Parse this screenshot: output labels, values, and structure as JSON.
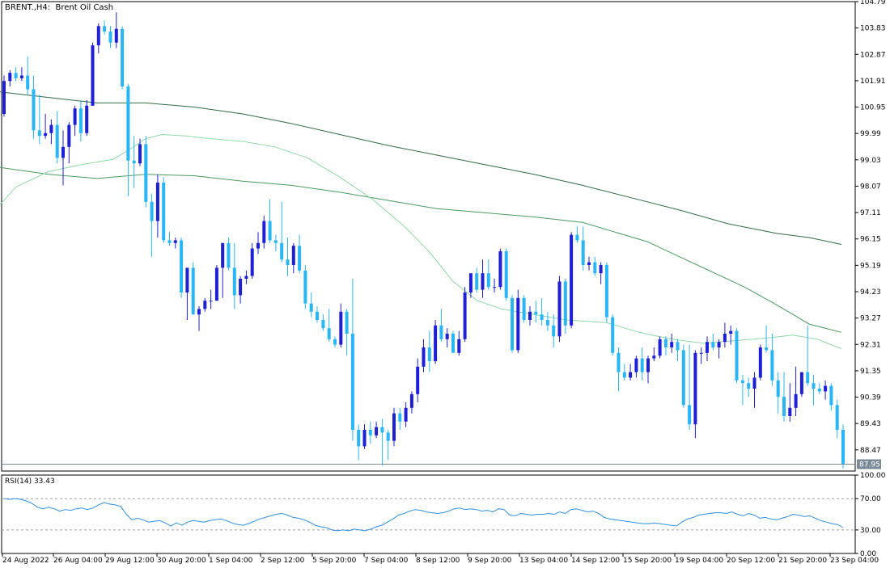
{
  "title": "BRENT.,H4:  Brent Oil Cash",
  "rsi_title": "RSI(14) 33.43",
  "colors": {
    "bull": "#1f1fd6",
    "bear": "#29b6f6",
    "ma_fast": "#8fd9a8",
    "ma_mid": "#4a9a5e",
    "ma_slow": "#2f6b45",
    "rsi": "#2f8fe0",
    "grid": "#000000",
    "price_line": "#7a8a99",
    "price_tag_bg": "#7a8a99"
  },
  "chart_data": [
    {
      "type": "candlestick",
      "title": "BRENT.,H4:  Brent Oil Cash",
      "ylim": [
        87.7,
        104.79
      ],
      "y_ticks": [
        "104.79",
        "103.83",
        "102.87",
        "101.91",
        "100.95",
        "99.99",
        "99.03",
        "98.07",
        "97.11",
        "96.15",
        "95.19",
        "94.23",
        "93.27",
        "92.31",
        "91.35",
        "90.39",
        "89.43",
        "88.47"
      ],
      "x_ticks": [
        "24 Aug 2022",
        "26 Aug 04:00",
        "29 Aug 12:00",
        "30 Aug 20:00",
        "1 Sep 04:00",
        "2 Sep 12:00",
        "5 Sep 20:00",
        "7 Sep 04:00",
        "8 Sep 12:00",
        "9 Sep 20:00",
        "13 Sep 04:00",
        "14 Sep 12:00",
        "15 Sep 20:00",
        "19 Sep 04:00",
        "20 Sep 12:00",
        "21 Sep 20:00",
        "23 Sep 04:00"
      ],
      "current_price": "87.95",
      "ohlc": [
        [
          100.7,
          102.1,
          100.6,
          101.9
        ],
        [
          101.9,
          102.3,
          101.7,
          102.2
        ],
        [
          102.2,
          102.4,
          101.9,
          102.0
        ],
        [
          102.0,
          102.4,
          101.9,
          102.1
        ],
        [
          102.1,
          102.8,
          101.4,
          101.6
        ],
        [
          101.6,
          102.1,
          99.8,
          100.1
        ],
        [
          100.1,
          101.4,
          99.6,
          99.9
        ],
        [
          99.9,
          100.7,
          99.8,
          100.0
        ],
        [
          100.0,
          100.5,
          99.6,
          100.3
        ],
        [
          100.3,
          100.8,
          98.9,
          99.1
        ],
        [
          99.1,
          100.1,
          98.1,
          99.5
        ],
        [
          99.5,
          100.4,
          98.9,
          100.3
        ],
        [
          100.3,
          101.0,
          99.9,
          100.9
        ],
        [
          100.9,
          101.2,
          99.7,
          100.0
        ],
        [
          100.0,
          101.2,
          99.9,
          101.0
        ],
        [
          101.0,
          103.3,
          101.0,
          103.2
        ],
        [
          103.2,
          104.0,
          102.9,
          103.9
        ],
        [
          103.9,
          104.1,
          103.6,
          103.7
        ],
        [
          103.7,
          103.9,
          103.1,
          103.3
        ],
        [
          103.3,
          104.4,
          103.1,
          103.8
        ],
        [
          103.8,
          103.9,
          101.6,
          101.7
        ],
        [
          101.7,
          101.8,
          97.7,
          99.0
        ],
        [
          99.0,
          99.9,
          98.0,
          98.9
        ],
        [
          98.9,
          99.8,
          98.8,
          99.6
        ],
        [
          99.6,
          99.9,
          97.3,
          97.5
        ],
        [
          97.5,
          97.8,
          95.5,
          96.8
        ],
        [
          96.8,
          98.5,
          96.2,
          98.2
        ],
        [
          98.2,
          98.4,
          96.0,
          96.1
        ],
        [
          96.1,
          96.4,
          95.9,
          96.0
        ],
        [
          96.0,
          96.2,
          95.8,
          96.1
        ],
        [
          96.1,
          96.2,
          94.0,
          94.2
        ],
        [
          94.2,
          95.0,
          93.2,
          95.1
        ],
        [
          95.1,
          95.3,
          93.4,
          93.4
        ],
        [
          93.4,
          93.7,
          92.8,
          93.6
        ],
        [
          93.6,
          94.0,
          93.5,
          93.9
        ],
        [
          93.9,
          94.3,
          93.6,
          93.9
        ],
        [
          93.9,
          95.2,
          93.9,
          95.1
        ],
        [
          95.1,
          96.0,
          94.0,
          96.0
        ],
        [
          96.0,
          96.2,
          95.0,
          95.1
        ],
        [
          95.1,
          96.0,
          93.6,
          94.1
        ],
        [
          94.1,
          94.8,
          93.8,
          94.7
        ],
        [
          94.7,
          95.0,
          94.5,
          94.8
        ],
        [
          94.8,
          96.0,
          94.7,
          95.8
        ],
        [
          95.8,
          96.4,
          95.6,
          96.0
        ],
        [
          96.0,
          97.0,
          95.8,
          96.8
        ],
        [
          96.8,
          97.6,
          96.0,
          96.1
        ],
        [
          96.1,
          96.3,
          95.7,
          96.0
        ],
        [
          96.0,
          97.5,
          95.3,
          95.4
        ],
        [
          95.4,
          96.2,
          94.8,
          95.2
        ],
        [
          95.2,
          96.0,
          94.9,
          95.9
        ],
        [
          95.9,
          96.3,
          94.9,
          95.0
        ],
        [
          95.0,
          95.2,
          93.6,
          93.8
        ],
        [
          93.8,
          94.2,
          93.3,
          93.5
        ],
        [
          93.5,
          93.7,
          93.1,
          93.2
        ],
        [
          93.2,
          93.4,
          92.8,
          92.9
        ],
        [
          92.9,
          93.6,
          92.4,
          92.5
        ],
        [
          92.5,
          92.6,
          92.2,
          92.3
        ],
        [
          92.3,
          93.8,
          92.2,
          93.5
        ],
        [
          93.5,
          93.6,
          91.9,
          92.7
        ],
        [
          92.7,
          94.7,
          88.8,
          89.2
        ],
        [
          89.2,
          89.4,
          88.1,
          88.6
        ],
        [
          88.6,
          89.4,
          88.5,
          89.2
        ],
        [
          89.2,
          89.5,
          88.7,
          89.0
        ],
        [
          89.0,
          89.5,
          88.9,
          89.3
        ],
        [
          89.3,
          89.6,
          87.9,
          89.1
        ],
        [
          89.1,
          89.2,
          88.1,
          88.8
        ],
        [
          88.8,
          90.0,
          88.6,
          89.8
        ],
        [
          89.8,
          90.0,
          89.2,
          89.5
        ],
        [
          89.5,
          90.2,
          89.3,
          90.0
        ],
        [
          90.0,
          90.6,
          89.8,
          90.5
        ],
        [
          90.5,
          91.8,
          90.2,
          91.5
        ],
        [
          91.5,
          92.5,
          91.3,
          92.2
        ],
        [
          92.2,
          92.8,
          91.3,
          91.7
        ],
        [
          91.7,
          93.2,
          91.6,
          93.0
        ],
        [
          93.0,
          93.6,
          92.4,
          92.5
        ],
        [
          92.5,
          92.9,
          92.2,
          92.7
        ],
        [
          92.7,
          92.8,
          92.1,
          92.0
        ],
        [
          92.0,
          92.8,
          91.9,
          92.5
        ],
        [
          92.5,
          94.4,
          92.4,
          94.2
        ],
        [
          94.2,
          94.8,
          94.0,
          94.9
        ],
        [
          94.9,
          95.1,
          94.2,
          94.3
        ],
        [
          94.3,
          95.4,
          94.0,
          94.9
        ],
        [
          94.9,
          95.4,
          94.3,
          94.4
        ],
        [
          94.4,
          94.7,
          94.2,
          94.4
        ],
        [
          94.4,
          95.8,
          94.3,
          95.7
        ],
        [
          95.7,
          95.8,
          93.9,
          94.0
        ],
        [
          94.0,
          94.1,
          92.0,
          92.1
        ],
        [
          92.1,
          94.3,
          92.0,
          94.0
        ],
        [
          94.0,
          94.1,
          93.1,
          93.2
        ],
        [
          93.2,
          93.7,
          93.0,
          93.5
        ],
        [
          93.5,
          93.9,
          93.1,
          93.4
        ],
        [
          93.4,
          94.0,
          93.0,
          93.2
        ],
        [
          93.2,
          93.5,
          92.8,
          93.0
        ],
        [
          93.0,
          93.4,
          92.2,
          92.6
        ],
        [
          92.6,
          94.8,
          92.4,
          94.6
        ],
        [
          94.6,
          94.7,
          92.7,
          93.0
        ],
        [
          93.0,
          96.4,
          92.9,
          96.3
        ],
        [
          96.3,
          96.6,
          96.0,
          96.1
        ],
        [
          96.1,
          96.6,
          95.0,
          95.2
        ],
        [
          95.2,
          95.5,
          95.0,
          95.3
        ],
        [
          95.3,
          95.5,
          94.8,
          94.9
        ],
        [
          94.9,
          95.3,
          94.5,
          95.2
        ],
        [
          95.2,
          95.3,
          93.1,
          93.3
        ],
        [
          93.3,
          93.4,
          91.9,
          92.0
        ],
        [
          92.0,
          92.2,
          90.6,
          91.3
        ],
        [
          91.3,
          91.6,
          91.0,
          91.1
        ],
        [
          91.1,
          91.6,
          91.0,
          91.3
        ],
        [
          91.3,
          91.9,
          91.1,
          91.8
        ],
        [
          91.8,
          92.2,
          91.0,
          91.3
        ],
        [
          91.3,
          91.9,
          90.9,
          91.8
        ],
        [
          91.8,
          92.2,
          91.7,
          91.9
        ],
        [
          91.9,
          92.6,
          91.8,
          92.5
        ],
        [
          92.5,
          92.6,
          91.9,
          92.2
        ],
        [
          92.2,
          92.7,
          92.0,
          92.4
        ],
        [
          92.4,
          92.5,
          91.7,
          92.1
        ],
        [
          92.1,
          92.3,
          90.0,
          90.1
        ],
        [
          90.1,
          92.3,
          89.2,
          89.4
        ],
        [
          89.4,
          92.1,
          88.9,
          92.0
        ],
        [
          92.0,
          92.2,
          91.6,
          92.0
        ],
        [
          92.0,
          92.6,
          91.7,
          92.4
        ],
        [
          92.4,
          92.7,
          92.1,
          92.2
        ],
        [
          92.2,
          92.5,
          91.8,
          92.4
        ],
        [
          92.4,
          93.1,
          92.2,
          92.7
        ],
        [
          92.7,
          93.0,
          92.3,
          92.8
        ],
        [
          92.8,
          92.9,
          90.9,
          91.0
        ],
        [
          91.0,
          91.2,
          90.1,
          90.9
        ],
        [
          90.9,
          91.1,
          90.4,
          90.7
        ],
        [
          90.7,
          91.3,
          90.0,
          91.1
        ],
        [
          91.1,
          92.3,
          91.0,
          92.2
        ],
        [
          92.2,
          93.0,
          92.0,
          92.1
        ],
        [
          92.1,
          92.7,
          90.8,
          91.0
        ],
        [
          91.0,
          91.3,
          89.8,
          90.4
        ],
        [
          90.4,
          91.3,
          89.5,
          89.7
        ],
        [
          89.7,
          90.9,
          89.5,
          90.0
        ],
        [
          90.0,
          91.5,
          89.7,
          90.5
        ],
        [
          90.5,
          91.3,
          90.4,
          91.3
        ],
        [
          91.3,
          93.0,
          90.8,
          90.9
        ],
        [
          90.9,
          91.2,
          90.1,
          90.7
        ],
        [
          90.7,
          90.9,
          90.5,
          90.6
        ],
        [
          90.6,
          91.0,
          90.3,
          90.8
        ],
        [
          90.8,
          90.9,
          89.9,
          90.1
        ],
        [
          90.1,
          90.3,
          88.9,
          89.2
        ],
        [
          89.2,
          89.4,
          87.8,
          87.95
        ]
      ],
      "ma_fast": [
        [
          0,
          97.4
        ],
        [
          20,
          98.05
        ],
        [
          60,
          98.6
        ],
        [
          100,
          98.85
        ],
        [
          140,
          99.05
        ],
        [
          160,
          99.4
        ],
        [
          180,
          99.8
        ],
        [
          200,
          99.95
        ],
        [
          230,
          99.9
        ],
        [
          260,
          99.8
        ],
        [
          300,
          99.7
        ],
        [
          340,
          99.5
        ],
        [
          380,
          99.1
        ],
        [
          420,
          98.4
        ],
        [
          460,
          97.6
        ],
        [
          500,
          96.6
        ],
        [
          530,
          95.7
        ],
        [
          560,
          94.6
        ],
        [
          590,
          93.9
        ],
        [
          620,
          93.6
        ],
        [
          660,
          93.4
        ],
        [
          700,
          93.2
        ],
        [
          750,
          93.1
        ],
        [
          790,
          92.75
        ],
        [
          830,
          92.5
        ],
        [
          870,
          92.35
        ],
        [
          910,
          92.45
        ],
        [
          950,
          92.55
        ],
        [
          980,
          92.65
        ],
        [
          1010,
          92.5
        ],
        [
          1040,
          92.15
        ]
      ],
      "ma_mid": [
        [
          0,
          98.75
        ],
        [
          60,
          98.5
        ],
        [
          120,
          98.35
        ],
        [
          180,
          98.5
        ],
        [
          240,
          98.45
        ],
        [
          300,
          98.25
        ],
        [
          360,
          98.1
        ],
        [
          420,
          97.85
        ],
        [
          480,
          97.55
        ],
        [
          540,
          97.25
        ],
        [
          600,
          97.1
        ],
        [
          660,
          96.95
        ],
        [
          720,
          96.75
        ],
        [
          760,
          96.4
        ],
        [
          800,
          96.05
        ],
        [
          840,
          95.5
        ],
        [
          880,
          94.95
        ],
        [
          920,
          94.4
        ],
        [
          960,
          93.75
        ],
        [
          1000,
          93.05
        ],
        [
          1040,
          92.75
        ]
      ],
      "ma_slow": [
        [
          0,
          101.5
        ],
        [
          60,
          101.3
        ],
        [
          120,
          101.1
        ],
        [
          180,
          101.1
        ],
        [
          240,
          100.95
        ],
        [
          300,
          100.7
        ],
        [
          360,
          100.35
        ],
        [
          420,
          99.95
        ],
        [
          480,
          99.55
        ],
        [
          540,
          99.2
        ],
        [
          600,
          98.85
        ],
        [
          660,
          98.5
        ],
        [
          720,
          98.1
        ],
        [
          780,
          97.65
        ],
        [
          840,
          97.2
        ],
        [
          900,
          96.7
        ],
        [
          960,
          96.35
        ],
        [
          1000,
          96.2
        ],
        [
          1040,
          95.95
        ]
      ]
    },
    {
      "type": "line",
      "title": "RSI(14) 33.43",
      "ylim": [
        0,
        100
      ],
      "y_ticks": [
        "100.00",
        "70.00",
        "30.00",
        "0.00"
      ],
      "levels": [
        70,
        30
      ],
      "values": [
        70,
        69,
        70,
        69,
        67,
        64,
        59,
        57,
        59,
        57,
        54,
        56,
        55,
        57,
        58,
        56,
        58,
        62,
        65,
        63,
        62,
        60,
        50,
        43,
        45,
        43,
        40,
        41,
        42,
        39,
        35,
        39,
        36,
        40,
        42,
        41,
        40,
        42,
        43,
        44,
        42,
        39,
        37,
        36,
        38,
        41,
        44,
        46,
        48,
        50,
        51,
        49,
        46,
        45,
        43,
        40,
        36,
        34,
        33,
        30,
        29,
        30,
        29,
        31,
        30,
        29,
        31,
        34,
        36,
        40,
        44,
        49,
        51,
        54,
        56,
        55,
        53,
        52,
        51,
        52,
        54,
        57,
        58,
        56,
        57,
        56,
        54,
        55,
        53,
        57,
        56,
        49,
        48,
        51,
        50,
        49,
        50,
        50,
        51,
        50,
        53,
        51,
        56,
        57,
        55,
        53,
        54,
        51,
        46,
        44,
        43,
        42,
        41,
        40,
        39,
        38,
        38,
        39,
        38,
        37,
        36,
        35,
        40,
        44,
        46,
        49,
        50,
        51,
        52,
        52,
        51,
        53,
        50,
        48,
        51,
        49,
        45,
        46,
        44,
        43,
        45,
        47,
        50,
        49,
        47,
        48,
        45,
        42,
        40,
        38,
        37,
        33
      ]
    }
  ]
}
